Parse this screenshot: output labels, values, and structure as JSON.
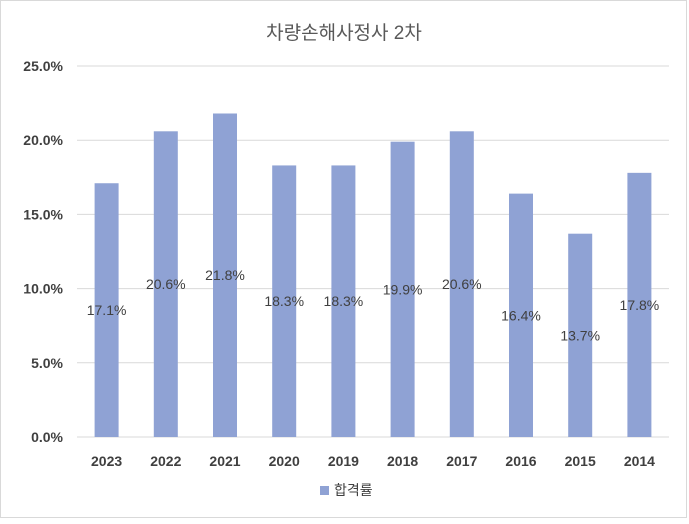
{
  "chart_data": {
    "type": "bar",
    "title": "차량손해사정사 2차",
    "categories": [
      "2023",
      "2022",
      "2021",
      "2020",
      "2019",
      "2018",
      "2017",
      "2016",
      "2015",
      "2014"
    ],
    "series": [
      {
        "name": "합격률",
        "values": [
          17.1,
          20.6,
          21.8,
          18.3,
          18.3,
          19.9,
          20.6,
          16.4,
          13.7,
          17.8
        ],
        "data_labels": [
          "17.1%",
          "20.6%",
          "21.8%",
          "18.3%",
          "18.3%",
          "19.9%",
          "20.6%",
          "16.4%",
          "13.7%",
          "17.8%"
        ]
      }
    ],
    "ylim": [
      0,
      25
    ],
    "yticks": [
      0,
      5,
      10,
      15,
      20,
      25
    ],
    "ytick_labels": [
      "0.0%",
      "5.0%",
      "10.0%",
      "15.0%",
      "20.0%",
      "25.0%"
    ],
    "xlabel": "",
    "ylabel": "",
    "grid": true,
    "legend": "bottom",
    "colors": {
      "bar": "#8fa2d4",
      "grid": "#d9d9d9",
      "text": "#404040",
      "title": "#595959"
    }
  }
}
